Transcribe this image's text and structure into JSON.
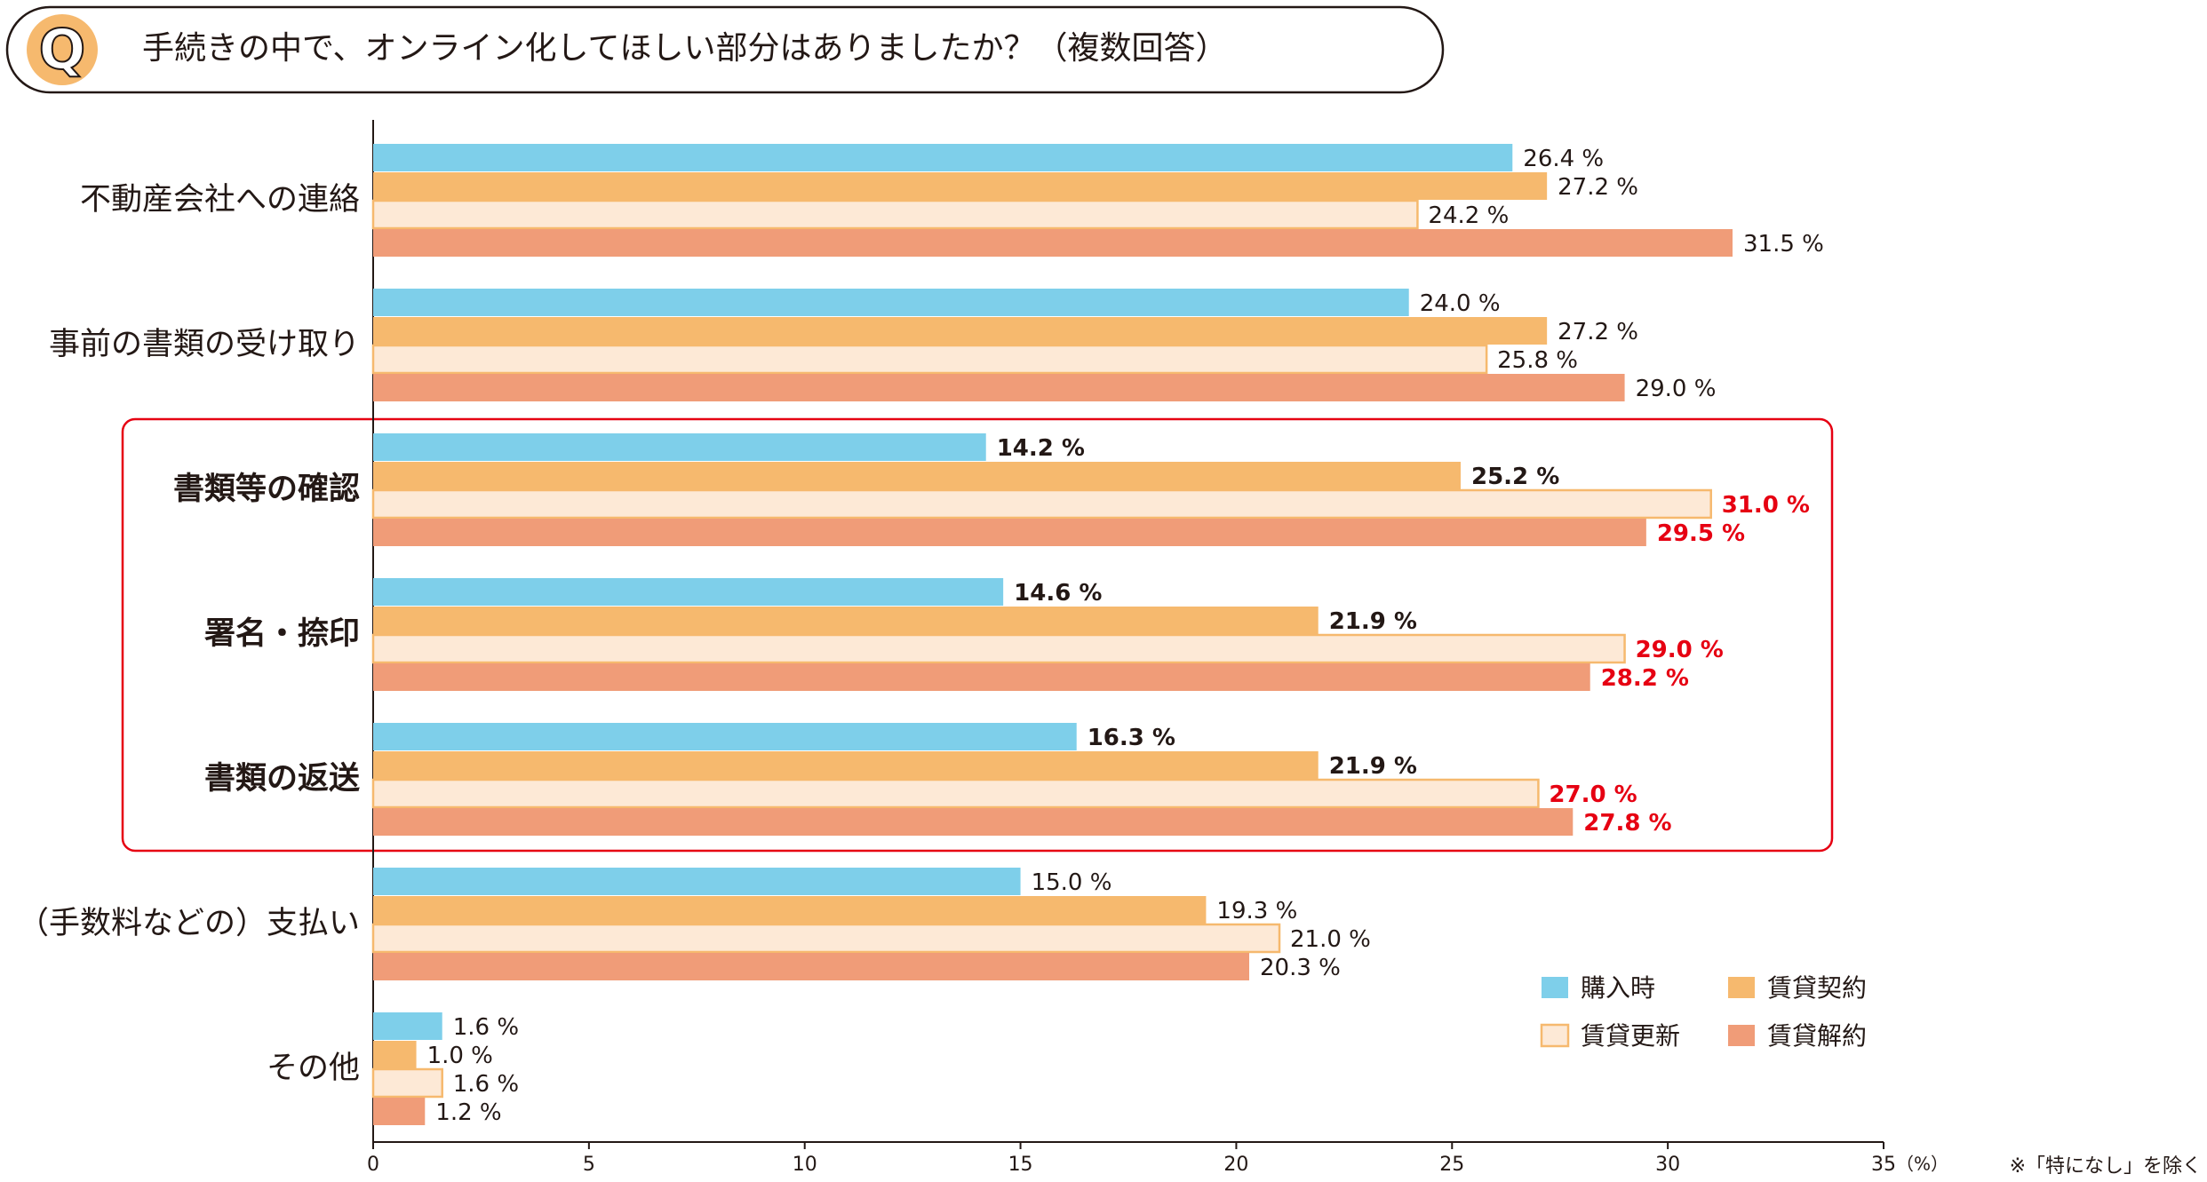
{
  "chart_data": {
    "type": "bar",
    "orientation": "horizontal",
    "title": "手続きの中で、オンライン化してほしい部分はありましたか？（複数回答）",
    "title_icon": "Q",
    "categories": [
      "不動産会社への連絡",
      "事前の書類の受け取り",
      "書類等の確認",
      "署名・捺印",
      "書類の返送",
      "（手数料などの）支払い",
      "その他"
    ],
    "series": [
      {
        "name": "購入時",
        "color": "#7ecfea",
        "values": [
          26.4,
          24.0,
          14.2,
          14.6,
          16.3,
          15.0,
          1.6
        ],
        "value_labels": [
          "26.4 %",
          "24.0 %",
          "14.2 %",
          "14.6 %",
          "16.3 %",
          "15.0 %",
          "1.6 %"
        ]
      },
      {
        "name": "賃貸契約",
        "color": "#f6b96e",
        "values": [
          27.2,
          27.2,
          25.2,
          21.9,
          21.9,
          19.3,
          1.0
        ],
        "value_labels": [
          "27.2 %",
          "27.2 %",
          "25.2 %",
          "21.9 %",
          "21.9 %",
          "19.3 %",
          "1.0 %"
        ]
      },
      {
        "name": "賃貸更新",
        "color": "#fde9d6",
        "border": "#f6b96e",
        "values": [
          24.2,
          25.8,
          31.0,
          29.0,
          27.0,
          21.0,
          1.6
        ],
        "value_labels": [
          "24.2 %",
          "25.8 %",
          "31.0 %",
          "29.0 %",
          "27.0 %",
          "21.0 %",
          "1.6 %"
        ]
      },
      {
        "name": "賃貸解約",
        "color": "#f09c78",
        "values": [
          31.5,
          29.0,
          29.5,
          28.2,
          27.8,
          20.3,
          1.2
        ],
        "value_labels": [
          "31.5 %",
          "29.0 %",
          "29.5 %",
          "28.2 %",
          "27.8 %",
          "20.3 %",
          "1.2 %"
        ]
      }
    ],
    "xlim": [
      0,
      35
    ],
    "xticks": [
      0,
      5,
      10,
      15,
      20,
      25,
      30,
      35
    ],
    "x_unit": "（%）",
    "emphasis": {
      "categories": [
        2,
        3,
        4
      ],
      "red_series": [
        2,
        3
      ],
      "color": "#e60012"
    },
    "footnote": "※「特になし」を除く"
  }
}
